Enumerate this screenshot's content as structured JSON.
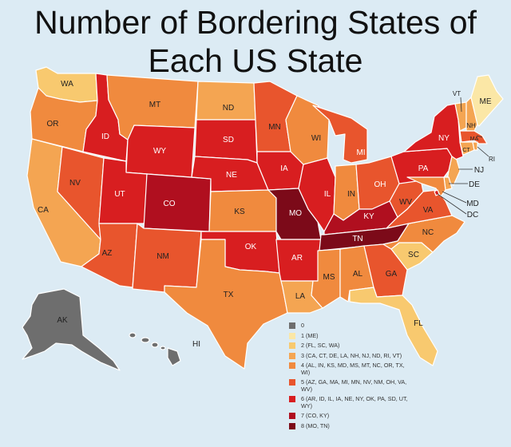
{
  "title": {
    "line1": "Number of Bordering States of",
    "line2": "Each US State"
  },
  "colors": {
    "0": "#6e6e6e",
    "1": "#fbe7a6",
    "2": "#f8c96f",
    "3": "#f4a552",
    "4": "#f08a3e",
    "5": "#e8552d",
    "6": "#d81e20",
    "7": "#b00f1f",
    "8": "#7c0a19"
  },
  "legend": [
    {
      "count": 0,
      "label": "0"
    },
    {
      "count": 1,
      "label": "1 (ME)"
    },
    {
      "count": 2,
      "label": "2 (FL, SC, WA)"
    },
    {
      "count": 3,
      "label": "3 (CA, CT, DE, LA, NH, NJ, ND, RI, VT)"
    },
    {
      "count": 4,
      "label": "4 (AL, IN, KS, MD, MS, MT, NC, OR, TX, WI)"
    },
    {
      "count": 5,
      "label": "5 (AZ, GA, MA, MI, MN, NV, NM, OH, VA, WV)"
    },
    {
      "count": 6,
      "label": "6 (AR, ID, IL, IA, NE, NY, OK, PA, SD, UT, WY)"
    },
    {
      "count": 7,
      "label": "7 (CO, KY)"
    },
    {
      "count": 8,
      "label": "8 (MO, TN)"
    }
  ],
  "states": [
    {
      "abbr": "WA",
      "count": 2
    },
    {
      "abbr": "OR",
      "count": 4
    },
    {
      "abbr": "CA",
      "count": 3
    },
    {
      "abbr": "ID",
      "count": 6
    },
    {
      "abbr": "NV",
      "count": 5
    },
    {
      "abbr": "MT",
      "count": 4
    },
    {
      "abbr": "WY",
      "count": 6
    },
    {
      "abbr": "UT",
      "count": 6
    },
    {
      "abbr": "AZ",
      "count": 5
    },
    {
      "abbr": "CO",
      "count": 7
    },
    {
      "abbr": "NM",
      "count": 5
    },
    {
      "abbr": "ND",
      "count": 3
    },
    {
      "abbr": "SD",
      "count": 6
    },
    {
      "abbr": "NE",
      "count": 6
    },
    {
      "abbr": "KS",
      "count": 4
    },
    {
      "abbr": "OK",
      "count": 6
    },
    {
      "abbr": "TX",
      "count": 4
    },
    {
      "abbr": "MN",
      "count": 5
    },
    {
      "abbr": "IA",
      "count": 6
    },
    {
      "abbr": "MO",
      "count": 8
    },
    {
      "abbr": "AR",
      "count": 6
    },
    {
      "abbr": "LA",
      "count": 3
    },
    {
      "abbr": "WI",
      "count": 4
    },
    {
      "abbr": "IL",
      "count": 6
    },
    {
      "abbr": "MI",
      "count": 5
    },
    {
      "abbr": "IN",
      "count": 4
    },
    {
      "abbr": "OH",
      "count": 5
    },
    {
      "abbr": "KY",
      "count": 7
    },
    {
      "abbr": "TN",
      "count": 8
    },
    {
      "abbr": "MS",
      "count": 4
    },
    {
      "abbr": "AL",
      "count": 4
    },
    {
      "abbr": "GA",
      "count": 5
    },
    {
      "abbr": "FL",
      "count": 2
    },
    {
      "abbr": "SC",
      "count": 2
    },
    {
      "abbr": "NC",
      "count": 4
    },
    {
      "abbr": "VA",
      "count": 5
    },
    {
      "abbr": "WV",
      "count": 5
    },
    {
      "abbr": "PA",
      "count": 6
    },
    {
      "abbr": "NY",
      "count": 6
    },
    {
      "abbr": "NJ",
      "count": 3
    },
    {
      "abbr": "DE",
      "count": 3
    },
    {
      "abbr": "MD",
      "count": 4
    },
    {
      "abbr": "DC",
      "count": null
    },
    {
      "abbr": "VT",
      "count": 3
    },
    {
      "abbr": "NH",
      "count": 3
    },
    {
      "abbr": "ME",
      "count": 1
    },
    {
      "abbr": "MA",
      "count": 5
    },
    {
      "abbr": "CT",
      "count": 3
    },
    {
      "abbr": "RI",
      "count": 3
    },
    {
      "abbr": "AK",
      "count": 0
    },
    {
      "abbr": "HI",
      "count": 0
    }
  ]
}
